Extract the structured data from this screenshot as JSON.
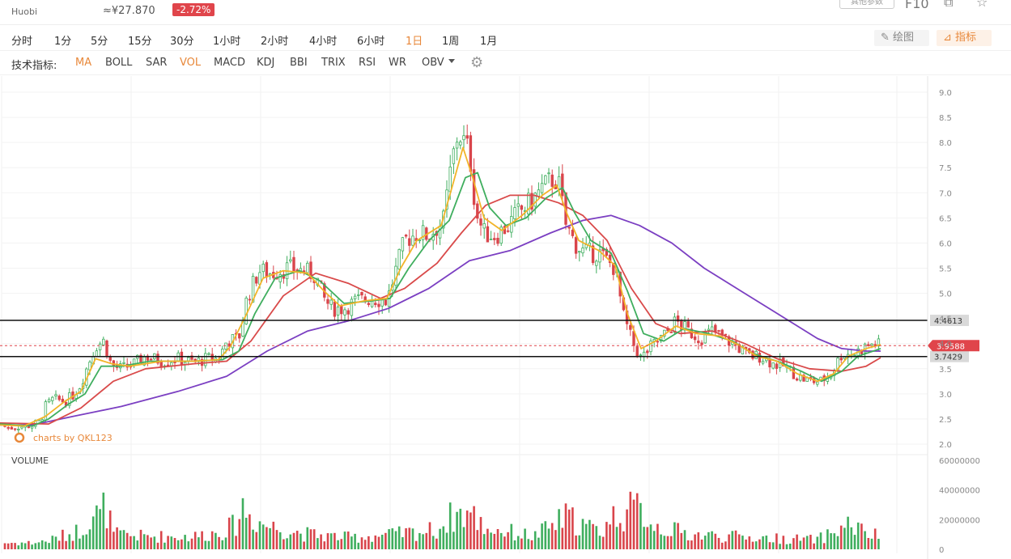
{
  "header": {
    "exchange": "Huobi",
    "price": "≈¥27.870",
    "change": "-2.72%",
    "pill": "其他参数",
    "f10": "F10"
  },
  "timeframes": [
    {
      "label": "分时",
      "active": false
    },
    {
      "label": "1分",
      "active": false
    },
    {
      "label": "5分",
      "active": false
    },
    {
      "label": "15分",
      "active": false
    },
    {
      "label": "30分",
      "active": false
    },
    {
      "label": "1小时",
      "active": false
    },
    {
      "label": "2小时",
      "active": false
    },
    {
      "label": "4小时",
      "active": false
    },
    {
      "label": "6小时",
      "active": false
    },
    {
      "label": "1日",
      "active": true
    },
    {
      "label": "1周",
      "active": false
    },
    {
      "label": "1月",
      "active": false
    }
  ],
  "tools": {
    "draw": "绘图",
    "indicators": "指标"
  },
  "indicators": {
    "label": "技术指标:",
    "items": [
      {
        "label": "MA",
        "active": true
      },
      {
        "label": "BOLL",
        "active": false
      },
      {
        "label": "SAR",
        "active": false
      },
      {
        "label": "VOL",
        "active": true
      },
      {
        "label": "MACD",
        "active": false
      },
      {
        "label": "KDJ",
        "active": false
      },
      {
        "label": "BBI",
        "active": false
      },
      {
        "label": "TRIX",
        "active": false
      },
      {
        "label": "RSI",
        "active": false
      },
      {
        "label": "WR",
        "active": false
      },
      {
        "label": "OBV",
        "active": false
      }
    ]
  },
  "chart_data": {
    "type": "candlestick",
    "watermark": "charts by QKL123",
    "price_axis": {
      "ticks": [
        "9.0",
        "8.5",
        "8.0",
        "7.5",
        "7.0",
        "6.5",
        "6.0",
        "5.5",
        "5.0",
        "4.5",
        "4.0",
        "3.5",
        "3.0",
        "2.5",
        "2.0"
      ],
      "range": [
        2.0,
        9.0
      ]
    },
    "horizontal_lines": [
      {
        "value": 4.4613,
        "label": "4.4613",
        "style": "solid"
      },
      {
        "value": 3.7429,
        "label": "3.7429",
        "style": "solid"
      }
    ],
    "last_price": {
      "value": 3.9588,
      "label": "3.9588",
      "color": "#e0454b"
    },
    "colors": {
      "up": "#3fae5e",
      "down": "#d9454b",
      "ma5": "#f2b429",
      "ma10": "#3fae5e",
      "ma30": "#d94a4a",
      "ma60": "#7b3fc2"
    },
    "price_path": [
      [
        0,
        2.4
      ],
      [
        10,
        2.32
      ],
      [
        20,
        2.35
      ],
      [
        30,
        2.36
      ],
      [
        40,
        2.38
      ],
      [
        50,
        2.45
      ],
      [
        56,
        2.75
      ],
      [
        66,
        2.9
      ],
      [
        80,
        2.85
      ],
      [
        92,
        3.0
      ],
      [
        100,
        3.2
      ],
      [
        108,
        3.55
      ],
      [
        118,
        3.95
      ],
      [
        128,
        4.05
      ],
      [
        138,
        3.55
      ],
      [
        150,
        3.5
      ],
      [
        166,
        3.6
      ],
      [
        180,
        3.75
      ],
      [
        200,
        3.65
      ],
      [
        220,
        3.7
      ],
      [
        240,
        3.62
      ],
      [
        255,
        3.7
      ],
      [
        270,
        3.7
      ],
      [
        280,
        4.05
      ],
      [
        295,
        4.1
      ],
      [
        305,
        4.9
      ],
      [
        320,
        5.45
      ],
      [
        335,
        5.4
      ],
      [
        355,
        5.5
      ],
      [
        375,
        5.45
      ],
      [
        390,
        5.35
      ],
      [
        400,
        4.9
      ],
      [
        410,
        4.7
      ],
      [
        425,
        4.7
      ],
      [
        440,
        4.85
      ],
      [
        460,
        4.9
      ],
      [
        478,
        4.85
      ],
      [
        488,
        5.4
      ],
      [
        500,
        6.05
      ],
      [
        515,
        6.2
      ],
      [
        530,
        6.15
      ],
      [
        548,
        6.45
      ],
      [
        558,
        7.6
      ],
      [
        566,
        8.2
      ],
      [
        572,
        8.05
      ],
      [
        580,
        7.8
      ],
      [
        588,
        6.6
      ],
      [
        598,
        6.2
      ],
      [
        612,
        6.15
      ],
      [
        628,
        6.35
      ],
      [
        640,
        6.6
      ],
      [
        655,
        6.8
      ],
      [
        670,
        7.1
      ],
      [
        685,
        7.3
      ],
      [
        692,
        7.1
      ],
      [
        698,
        6.4
      ],
      [
        710,
        6.0
      ],
      [
        722,
        5.8
      ],
      [
        740,
        5.8
      ],
      [
        760,
        5.5
      ],
      [
        770,
        4.55
      ],
      [
        782,
        4.0
      ],
      [
        792,
        3.7
      ],
      [
        805,
        3.95
      ],
      [
        820,
        4.15
      ],
      [
        835,
        4.45
      ],
      [
        850,
        4.25
      ],
      [
        865,
        4.1
      ],
      [
        880,
        4.25
      ],
      [
        895,
        4.1
      ],
      [
        910,
        3.95
      ],
      [
        925,
        3.75
      ],
      [
        940,
        3.75
      ],
      [
        955,
        3.6
      ],
      [
        970,
        3.55
      ],
      [
        985,
        3.35
      ],
      [
        1000,
        3.25
      ],
      [
        1015,
        3.25
      ],
      [
        1028,
        3.45
      ],
      [
        1040,
        3.8
      ],
      [
        1055,
        3.8
      ],
      [
        1070,
        3.95
      ],
      [
        1080,
        4.0
      ],
      [
        1088,
        3.96
      ]
    ],
    "ma5": [
      [
        0,
        2.38
      ],
      [
        30,
        2.36
      ],
      [
        56,
        2.55
      ],
      [
        80,
        2.85
      ],
      [
        100,
        3.05
      ],
      [
        118,
        3.7
      ],
      [
        138,
        3.6
      ],
      [
        160,
        3.55
      ],
      [
        200,
        3.65
      ],
      [
        240,
        3.65
      ],
      [
        270,
        3.68
      ],
      [
        285,
        3.95
      ],
      [
        305,
        4.6
      ],
      [
        325,
        5.3
      ],
      [
        350,
        5.45
      ],
      [
        380,
        5.4
      ],
      [
        400,
        5.05
      ],
      [
        420,
        4.75
      ],
      [
        450,
        4.85
      ],
      [
        478,
        4.9
      ],
      [
        495,
        5.5
      ],
      [
        515,
        6.05
      ],
      [
        545,
        6.35
      ],
      [
        560,
        7.2
      ],
      [
        572,
        7.9
      ],
      [
        584,
        7.3
      ],
      [
        598,
        6.5
      ],
      [
        620,
        6.25
      ],
      [
        645,
        6.55
      ],
      [
        670,
        6.95
      ],
      [
        688,
        7.15
      ],
      [
        700,
        6.6
      ],
      [
        715,
        6.05
      ],
      [
        740,
        5.85
      ],
      [
        760,
        5.55
      ],
      [
        775,
        4.6
      ],
      [
        792,
        3.9
      ],
      [
        810,
        4.05
      ],
      [
        835,
        4.35
      ],
      [
        860,
        4.2
      ],
      [
        890,
        4.15
      ],
      [
        915,
        3.95
      ],
      [
        935,
        3.75
      ],
      [
        960,
        3.65
      ],
      [
        985,
        3.4
      ],
      [
        1010,
        3.25
      ],
      [
        1030,
        3.4
      ],
      [
        1048,
        3.75
      ],
      [
        1070,
        3.9
      ],
      [
        1088,
        3.98
      ]
    ],
    "ma10": [
      [
        0,
        2.4
      ],
      [
        40,
        2.36
      ],
      [
        60,
        2.5
      ],
      [
        85,
        2.8
      ],
      [
        105,
        3.0
      ],
      [
        125,
        3.55
      ],
      [
        150,
        3.55
      ],
      [
        185,
        3.65
      ],
      [
        240,
        3.65
      ],
      [
        275,
        3.68
      ],
      [
        295,
        3.85
      ],
      [
        315,
        4.6
      ],
      [
        340,
        5.3
      ],
      [
        370,
        5.45
      ],
      [
        395,
        5.25
      ],
      [
        425,
        4.8
      ],
      [
        460,
        4.85
      ],
      [
        482,
        4.9
      ],
      [
        505,
        5.5
      ],
      [
        530,
        6.05
      ],
      [
        555,
        6.45
      ],
      [
        575,
        7.3
      ],
      [
        590,
        7.4
      ],
      [
        605,
        6.7
      ],
      [
        625,
        6.35
      ],
      [
        650,
        6.5
      ],
      [
        675,
        6.9
      ],
      [
        695,
        7.1
      ],
      [
        710,
        6.6
      ],
      [
        730,
        6.05
      ],
      [
        755,
        5.8
      ],
      [
        775,
        5.05
      ],
      [
        795,
        4.2
      ],
      [
        820,
        4.05
      ],
      [
        845,
        4.3
      ],
      [
        875,
        4.2
      ],
      [
        905,
        4.05
      ],
      [
        930,
        3.8
      ],
      [
        960,
        3.65
      ],
      [
        990,
        3.45
      ],
      [
        1015,
        3.25
      ],
      [
        1040,
        3.45
      ],
      [
        1060,
        3.75
      ],
      [
        1088,
        3.9
      ]
    ],
    "ma30": [
      [
        0,
        2.42
      ],
      [
        60,
        2.4
      ],
      [
        100,
        2.72
      ],
      [
        140,
        3.25
      ],
      [
        180,
        3.5
      ],
      [
        240,
        3.6
      ],
      [
        280,
        3.65
      ],
      [
        310,
        4.05
      ],
      [
        350,
        4.95
      ],
      [
        390,
        5.4
      ],
      [
        430,
        5.2
      ],
      [
        470,
        4.9
      ],
      [
        500,
        5.1
      ],
      [
        540,
        5.6
      ],
      [
        570,
        6.2
      ],
      [
        600,
        6.75
      ],
      [
        630,
        6.95
      ],
      [
        660,
        6.95
      ],
      [
        690,
        6.8
      ],
      [
        720,
        6.55
      ],
      [
        750,
        6.05
      ],
      [
        780,
        5.1
      ],
      [
        810,
        4.4
      ],
      [
        840,
        4.2
      ],
      [
        880,
        4.25
      ],
      [
        920,
        4.0
      ],
      [
        960,
        3.7
      ],
      [
        1000,
        3.5
      ],
      [
        1040,
        3.45
      ],
      [
        1070,
        3.55
      ],
      [
        1088,
        3.72
      ]
    ],
    "ma60": [
      [
        0,
        2.38
      ],
      [
        40,
        2.38
      ],
      [
        90,
        2.55
      ],
      [
        150,
        2.75
      ],
      [
        220,
        3.05
      ],
      [
        280,
        3.35
      ],
      [
        330,
        3.85
      ],
      [
        380,
        4.25
      ],
      [
        430,
        4.45
      ],
      [
        480,
        4.7
      ],
      [
        530,
        5.1
      ],
      [
        580,
        5.65
      ],
      [
        630,
        5.85
      ],
      [
        680,
        6.2
      ],
      [
        720,
        6.45
      ],
      [
        755,
        6.55
      ],
      [
        790,
        6.35
      ],
      [
        830,
        6.0
      ],
      [
        870,
        5.5
      ],
      [
        920,
        5.0
      ],
      [
        970,
        4.5
      ],
      [
        1010,
        4.1
      ],
      [
        1040,
        3.9
      ],
      [
        1070,
        3.85
      ],
      [
        1088,
        3.85
      ]
    ],
    "volume_axis": {
      "ticks": [
        "60000000",
        "40000000",
        "20000000",
        "0"
      ],
      "range": [
        0,
        60000000
      ]
    },
    "volume_label": "VOLUME",
    "volume_profile": [
      [
        0,
        6
      ],
      [
        40,
        6
      ],
      [
        60,
        8
      ],
      [
        100,
        18
      ],
      [
        115,
        34
      ],
      [
        125,
        30
      ],
      [
        130,
        44
      ],
      [
        140,
        14
      ],
      [
        180,
        12
      ],
      [
        240,
        12
      ],
      [
        270,
        16
      ],
      [
        290,
        22
      ],
      [
        300,
        40
      ],
      [
        310,
        30
      ],
      [
        330,
        22
      ],
      [
        380,
        14
      ],
      [
        430,
        11
      ],
      [
        490,
        14
      ],
      [
        540,
        18
      ],
      [
        560,
        32
      ],
      [
        580,
        34
      ],
      [
        600,
        20
      ],
      [
        660,
        12
      ],
      [
        700,
        30
      ],
      [
        740,
        16
      ],
      [
        760,
        32
      ],
      [
        790,
        38
      ],
      [
        810,
        22
      ],
      [
        850,
        14
      ],
      [
        900,
        12
      ],
      [
        960,
        10
      ],
      [
        1010,
        9
      ],
      [
        1030,
        16
      ],
      [
        1050,
        24
      ],
      [
        1070,
        14
      ],
      [
        1088,
        12
      ]
    ]
  }
}
